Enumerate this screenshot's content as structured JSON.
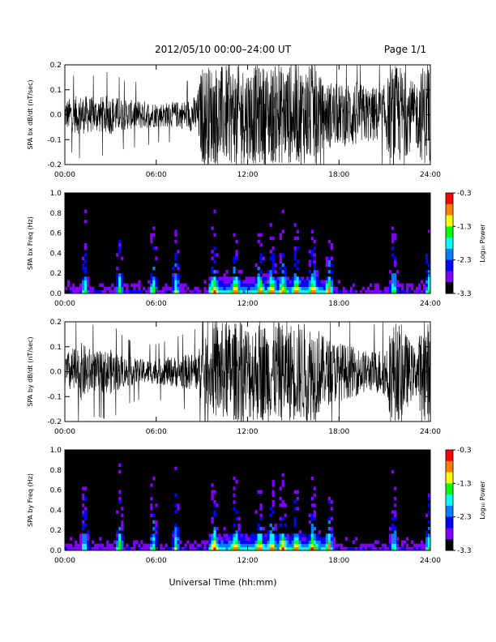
{
  "header": {
    "title": "2012/05/10   00:00–24:00 UT",
    "page": "Page 1/1"
  },
  "footer": {
    "xaxis_title": "Universal Time (hh:mm)"
  },
  "colorbar": {
    "title": "Log₁₀ Power",
    "ticks": [
      "-0.3",
      "-1.3",
      "-2.3",
      "-3.3"
    ],
    "scale": [
      "#ff0000",
      "#ff8000",
      "#ffff00",
      "#00ff00",
      "#00ffff",
      "#0080ff",
      "#0000ff",
      "#8000ff",
      "#000000"
    ]
  },
  "chart_data": [
    {
      "type": "line",
      "title": "",
      "ylabel": "SPA bx dB/dt (nT/sec)",
      "xlabel": "",
      "xlim": [
        "00:00",
        "24:00"
      ],
      "ylim": [
        -0.2,
        0.2
      ],
      "xticks": [
        "00:00",
        "06:00",
        "12:00",
        "18:00",
        "24:00"
      ],
      "yticks": [
        "-0.2",
        "-0.1",
        "0.0",
        "0.1",
        "0.2"
      ],
      "envelope": {
        "x_hours": [
          0,
          1,
          2,
          3,
          4,
          5,
          6,
          7,
          8,
          8.7,
          9,
          9.5,
          10,
          11,
          12,
          13,
          14,
          15,
          16,
          16.5,
          17,
          17.5,
          18,
          19,
          20,
          21,
          21.5,
          22,
          23,
          23.5,
          24
        ],
        "amplitude": [
          0.06,
          0.08,
          0.07,
          0.08,
          0.06,
          0.06,
          0.05,
          0.05,
          0.06,
          0.08,
          0.2,
          0.2,
          0.2,
          0.2,
          0.2,
          0.2,
          0.2,
          0.2,
          0.2,
          0.2,
          0.12,
          0.14,
          0.12,
          0.14,
          0.11,
          0.12,
          0.2,
          0.2,
          0.12,
          0.2,
          0.2
        ]
      }
    },
    {
      "type": "heatmap",
      "title": "",
      "ylabel": "SPA bx Freq (Hz)",
      "xlabel": "",
      "xlim": [
        "00:00",
        "24:00"
      ],
      "ylim": [
        0.0,
        1.0
      ],
      "xticks": [
        "00:00",
        "06:00",
        "12:00",
        "18:00",
        "24:00"
      ],
      "yticks": [
        "0.0",
        "0.2",
        "0.4",
        "0.6",
        "0.8",
        "1.0"
      ],
      "colorbar_range": [
        -3.3,
        -0.3
      ],
      "bursts_hours": [
        1.3,
        3.6,
        5.8,
        7.3,
        9.8,
        11.2,
        12.8,
        13.6,
        14.3,
        15.2,
        16.3,
        17.4,
        21.6,
        23.9
      ],
      "activity_band_hours": [
        9.5,
        17.5
      ]
    },
    {
      "type": "line",
      "title": "",
      "ylabel": "SPA by dB/dt (nT/sec)",
      "xlabel": "",
      "xlim": [
        "00:00",
        "24:00"
      ],
      "ylim": [
        -0.2,
        0.2
      ],
      "xticks": [
        "00:00",
        "06:00",
        "12:00",
        "18:00",
        "24:00"
      ],
      "yticks": [
        "-0.2",
        "-0.1",
        "0.0",
        "0.1",
        "0.2"
      ],
      "envelope": {
        "x_hours": [
          0,
          1,
          2,
          3,
          4,
          5,
          6,
          7,
          8,
          8.7,
          9,
          9.5,
          10,
          11,
          12,
          13,
          14,
          15,
          16,
          16.5,
          17,
          17.5,
          18,
          19,
          20,
          21,
          21.5,
          22,
          23,
          23.5,
          24
        ],
        "amplitude": [
          0.07,
          0.12,
          0.08,
          0.09,
          0.06,
          0.05,
          0.05,
          0.06,
          0.07,
          0.08,
          0.12,
          0.15,
          0.2,
          0.2,
          0.2,
          0.2,
          0.2,
          0.2,
          0.2,
          0.2,
          0.14,
          0.13,
          0.12,
          0.1,
          0.08,
          0.1,
          0.2,
          0.2,
          0.09,
          0.2,
          0.2
        ]
      }
    },
    {
      "type": "heatmap",
      "title": "",
      "ylabel": "SPA by Freq (Hz)",
      "xlabel": "Universal Time (hh:mm)",
      "xlim": [
        "00:00",
        "24:00"
      ],
      "ylim": [
        0.0,
        1.0
      ],
      "xticks": [
        "00:00",
        "06:00",
        "12:00",
        "18:00",
        "24:00"
      ],
      "yticks": [
        "0.0",
        "0.2",
        "0.4",
        "0.6",
        "0.8",
        "1.0"
      ],
      "colorbar_range": [
        -3.3,
        -0.3
      ],
      "bursts_hours": [
        1.3,
        3.6,
        5.8,
        7.3,
        9.8,
        11.2,
        12.8,
        13.6,
        14.3,
        15.2,
        16.3,
        17.4,
        21.6,
        23.9
      ],
      "activity_band_hours": [
        9.5,
        17.5
      ]
    }
  ]
}
